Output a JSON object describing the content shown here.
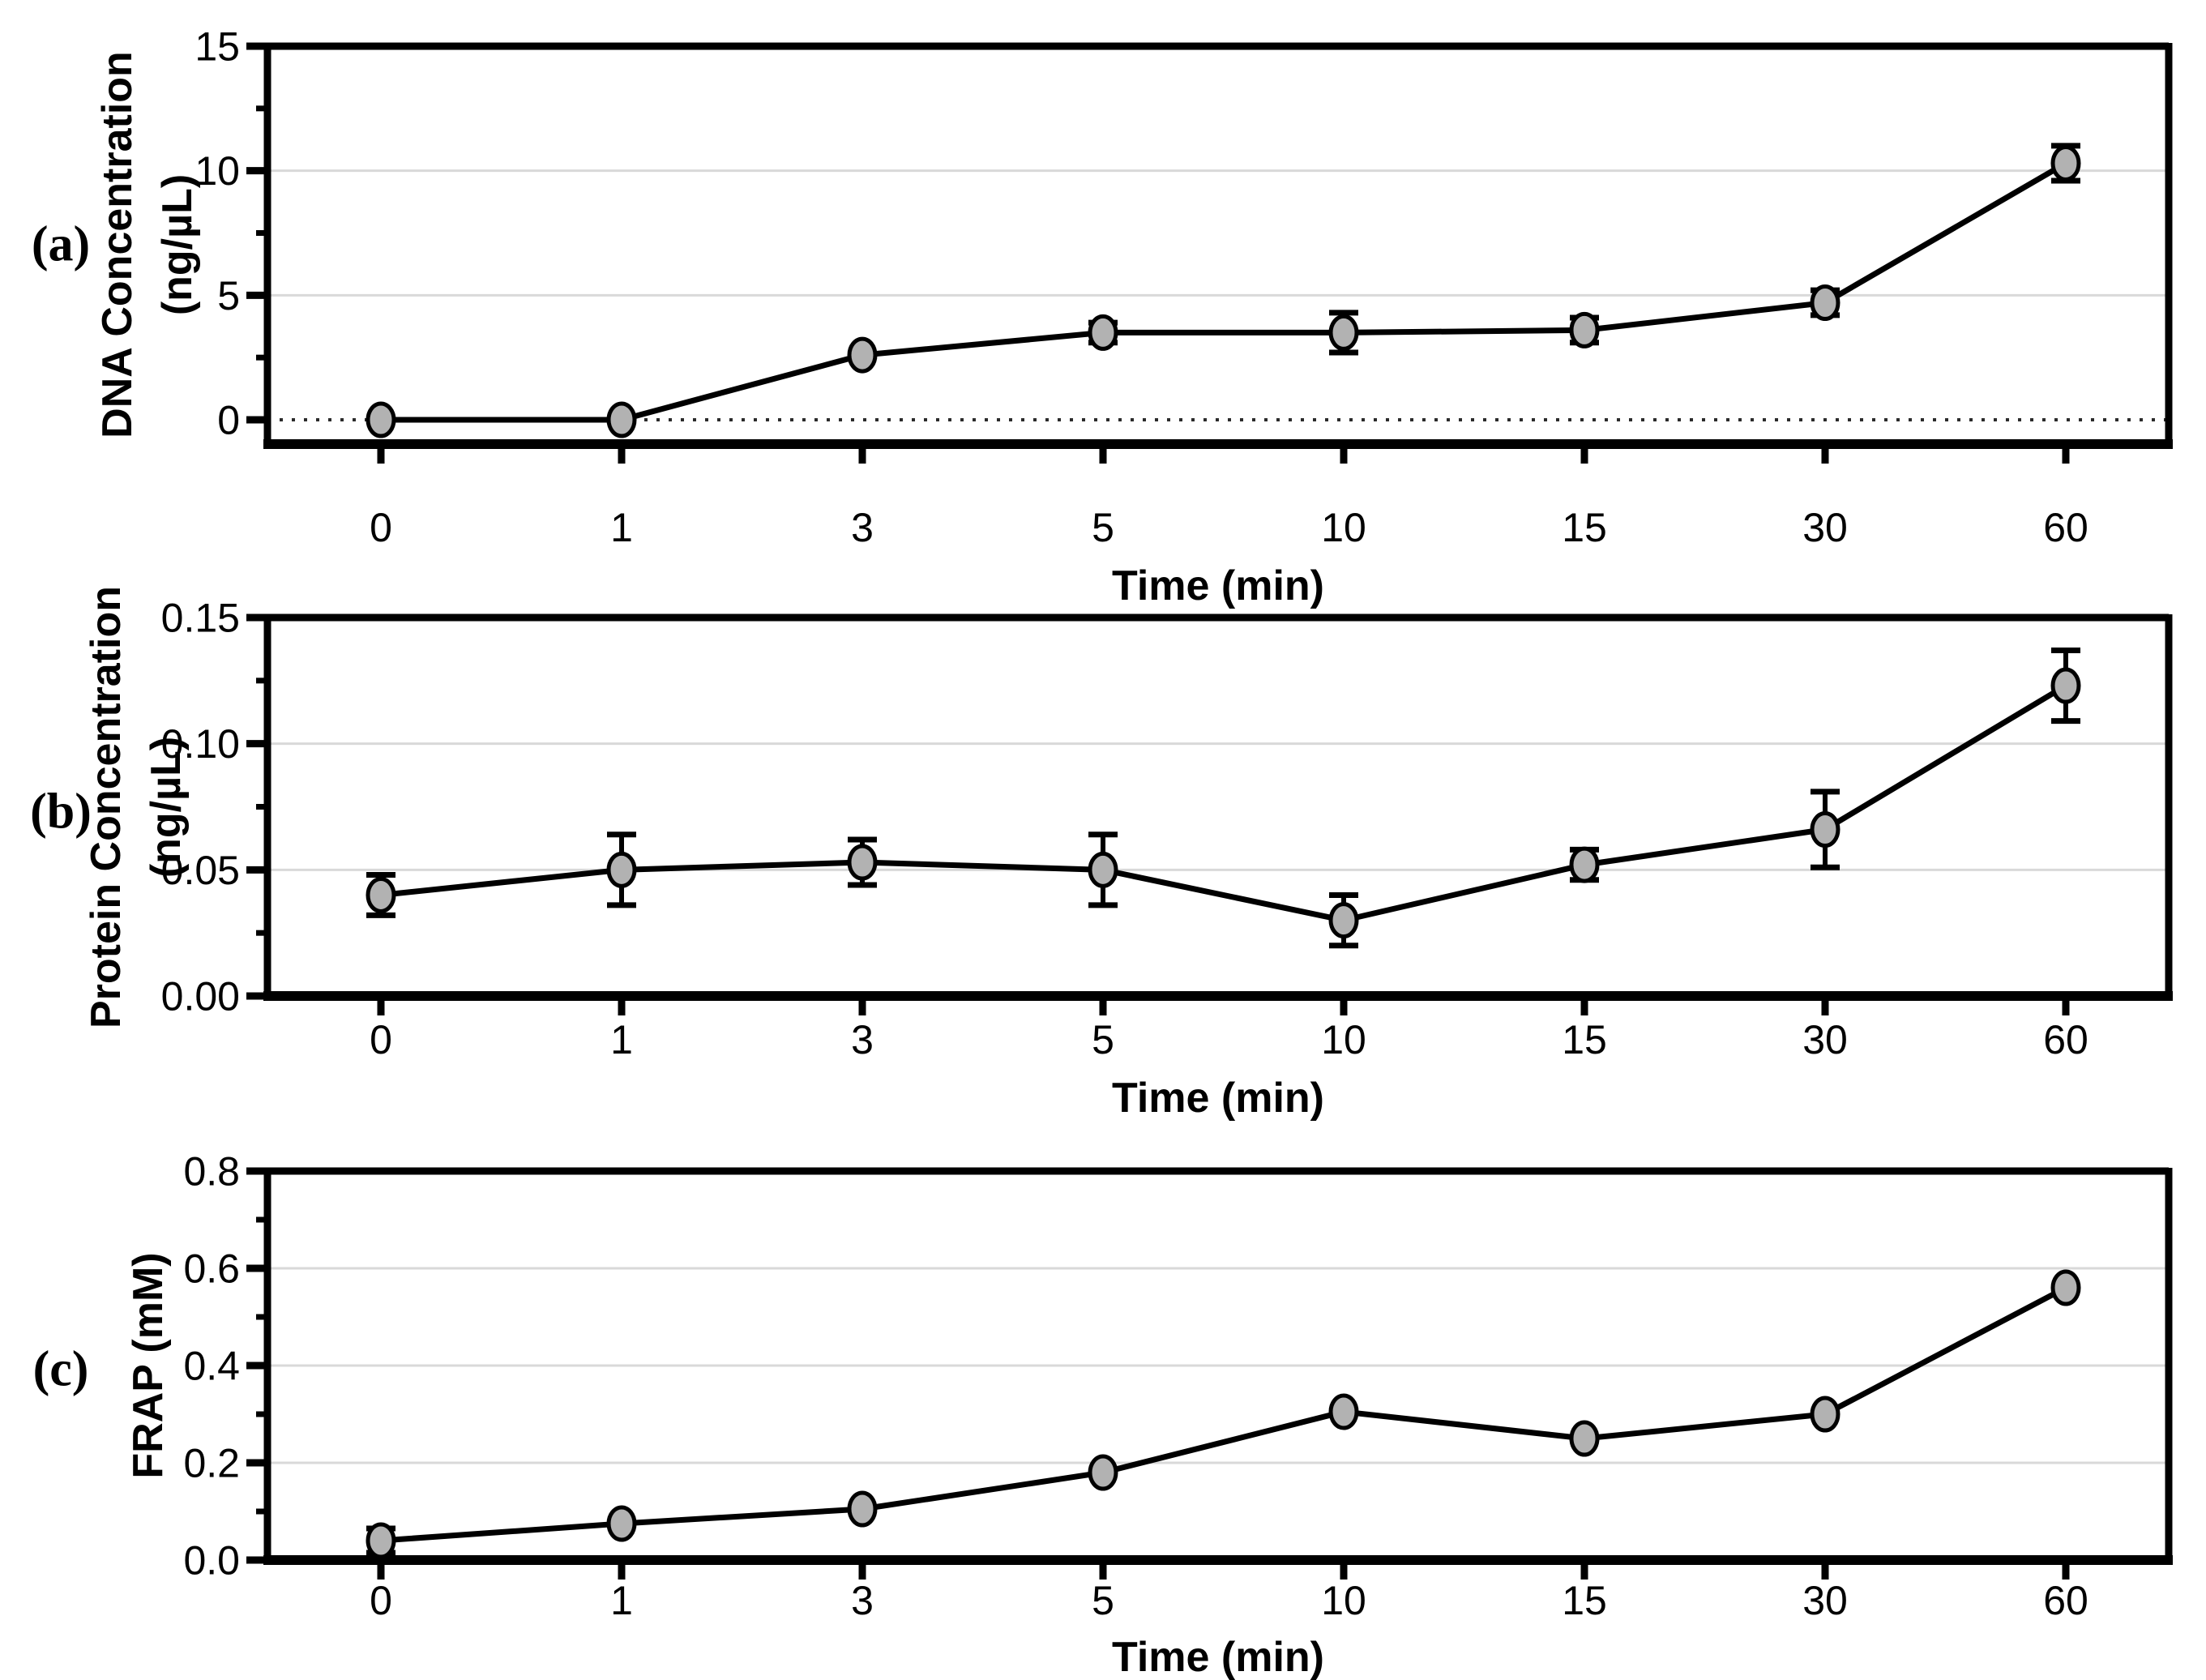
{
  "figure": {
    "background": "#ffffff",
    "styles": {
      "marker_fill": "#b2b2b2",
      "marker_stroke": "#000000",
      "line_color": "#000000",
      "grid_color": "#d9d9d9",
      "frame_color": "#000000",
      "zero_line_color": "#2b2b2b",
      "text_color": "#000000"
    }
  },
  "chart_data": [
    {
      "id": "a",
      "panel_label": "(a)",
      "type": "line",
      "x_type": "categorical",
      "title": "",
      "xlabel": "Time (min)",
      "ylabel_lines": [
        "DNA Concentration",
        "(ng/µL)"
      ],
      "categories": [
        "0",
        "1",
        "3",
        "5",
        "10",
        "15",
        "30",
        "60"
      ],
      "values": [
        0,
        0,
        2.6,
        3.5,
        3.5,
        3.6,
        4.7,
        10.3
      ],
      "errors": [
        0,
        0,
        0,
        0.4,
        0.8,
        0.5,
        0.5,
        0.7
      ],
      "ylim": [
        0,
        15
      ],
      "yticks": [
        0,
        5,
        10,
        15
      ],
      "ytick_labels": [
        "0",
        "5",
        "10",
        "15"
      ],
      "minor_yticks": [
        2.5,
        7.5,
        12.5
      ],
      "gridlines": [
        5,
        10
      ],
      "zero_dotted_line": true,
      "marker": "gray-filled-circle",
      "error_bars": "vertical-with-caps",
      "grid": "horizontal-major",
      "legend": "none"
    },
    {
      "id": "b",
      "panel_label": "(b)",
      "type": "line",
      "x_type": "categorical",
      "title": "",
      "xlabel": "Time (min)",
      "ylabel_lines": [
        "Protein Concentration",
        "(ng/µL)"
      ],
      "categories": [
        "0",
        "1",
        "3",
        "5",
        "10",
        "15",
        "30",
        "60"
      ],
      "values": [
        0.04,
        0.05,
        0.053,
        0.05,
        0.03,
        0.052,
        0.066,
        0.123
      ],
      "errors": [
        0.008,
        0.014,
        0.009,
        0.014,
        0.01,
        0.006,
        0.015,
        0.014
      ],
      "ylim": [
        0,
        0.15
      ],
      "yticks": [
        0,
        0.05,
        0.1,
        0.15
      ],
      "ytick_labels": [
        "0.00",
        "0.05",
        "0.10",
        "0.15"
      ],
      "minor_yticks": [
        0.025,
        0.075,
        0.125
      ],
      "gridlines": [
        0.05,
        0.1
      ],
      "zero_dotted_line": false,
      "marker": "gray-filled-circle",
      "error_bars": "vertical-with-caps",
      "grid": "horizontal-major",
      "legend": "none"
    },
    {
      "id": "c",
      "panel_label": "(c)",
      "type": "line",
      "x_type": "categorical",
      "title": "",
      "xlabel": "Time (min)",
      "ylabel_lines": [
        "FRAP (mM)"
      ],
      "categories": [
        "0",
        "1",
        "3",
        "5",
        "10",
        "15",
        "30",
        "60"
      ],
      "values": [
        0.04,
        0.075,
        0.105,
        0.18,
        0.305,
        0.25,
        0.3,
        0.56
      ],
      "errors": [
        0.025,
        0,
        0,
        0,
        0,
        0,
        0,
        0
      ],
      "ylim": [
        0,
        0.8
      ],
      "yticks": [
        0,
        0.2,
        0.4,
        0.6,
        0.8
      ],
      "ytick_labels": [
        "0.0",
        "0.2",
        "0.4",
        "0.6",
        "0.8"
      ],
      "minor_yticks": [
        0.1,
        0.3,
        0.5,
        0.7
      ],
      "gridlines": [
        0.2,
        0.4,
        0.6
      ],
      "zero_dotted_line": false,
      "marker": "gray-filled-circle",
      "error_bars": "vertical-with-caps",
      "grid": "horizontal-major",
      "legend": "none"
    }
  ]
}
